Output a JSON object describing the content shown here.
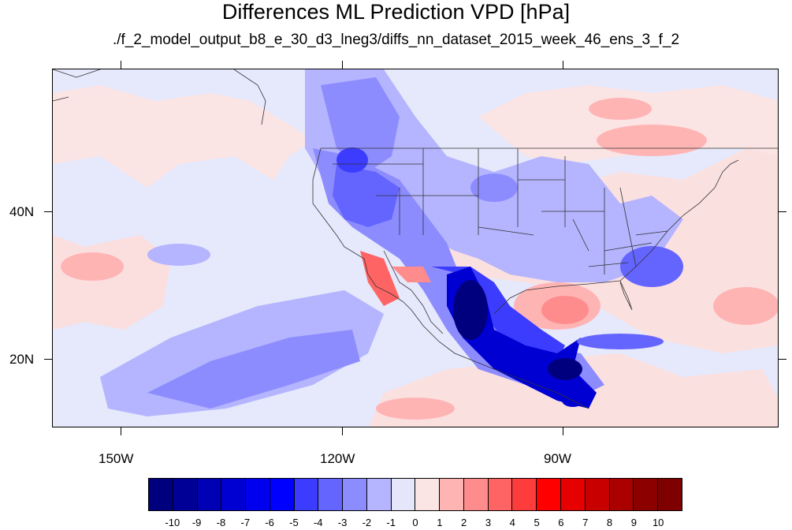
{
  "title": "Differences ML Prediction VPD [hPa]",
  "subtitle": "./f_2_model_output_b8_e_30_d3_lneg3/diffs_nn_dataset_2015_week_46_ens_3_f_2",
  "axes": {
    "y_labels": [
      "40N",
      "20N"
    ],
    "x_labels": [
      "150W",
      "120W",
      "90W"
    ]
  },
  "colorbar": {
    "labels": [
      "-10",
      "-9",
      "-8",
      "-7",
      "-6",
      "-5",
      "-4",
      "-3",
      "-2",
      "-1",
      "0",
      "1",
      "2",
      "3",
      "4",
      "5",
      "6",
      "7",
      "8",
      "9",
      "10"
    ],
    "colors": [
      "#00007f",
      "#000096",
      "#0000b4",
      "#0000d2",
      "#0000ef",
      "#0000ff",
      "#3c3cff",
      "#6464ff",
      "#8c8cff",
      "#b4b4ff",
      "#e6e6fa",
      "#fbe4e4",
      "#ffb4b4",
      "#ff8c8c",
      "#ff6464",
      "#ff3c3c",
      "#ff0000",
      "#e60000",
      "#c80000",
      "#aa0000",
      "#8c0000",
      "#7f0000"
    ]
  }
}
